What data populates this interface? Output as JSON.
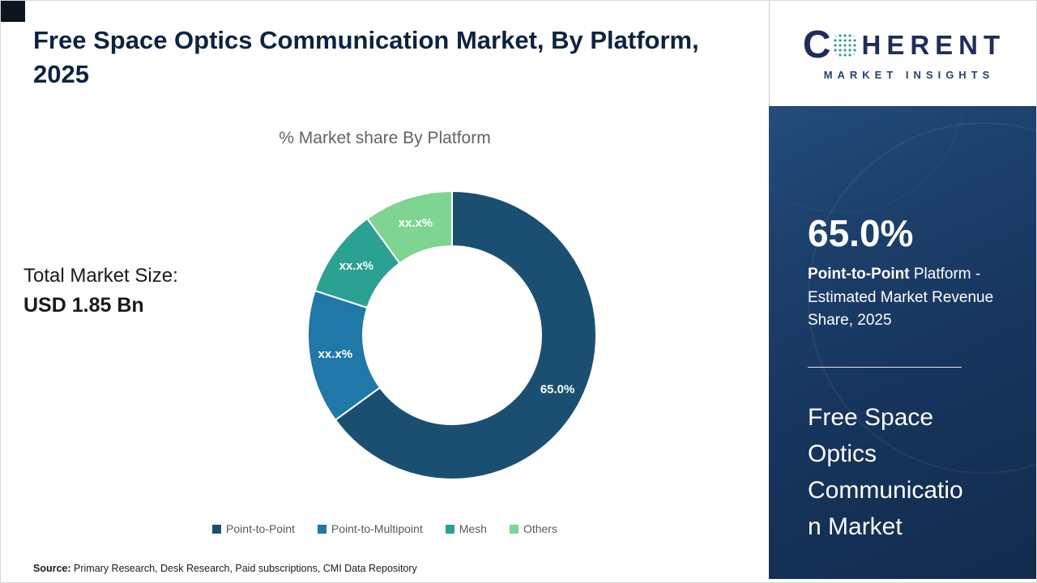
{
  "header": {
    "title": "Free Space Optics Communication Market, By Platform, 2025"
  },
  "total_market": {
    "label": "Total Market Size:",
    "value": "USD 1.85 Bn"
  },
  "chart_data": {
    "type": "pie",
    "variant": "donut",
    "title": "% Market share By Platform",
    "categories": [
      "Point-to-Point",
      "Point-to-Multipoint",
      "Mesh",
      "Others"
    ],
    "values": [
      65.0,
      15.0,
      10.0,
      10.0
    ],
    "labels": [
      "65.0%",
      "xx.x%",
      "xx.x%",
      "xx.x%"
    ],
    "colors": [
      "#1b4f72",
      "#1f78a8",
      "#2ba193",
      "#7ed491"
    ],
    "legend_position": "bottom",
    "start_angle_deg": -90,
    "direction": "clockwise"
  },
  "source": {
    "prefix": "Source:",
    "text": " Primary Research, Desk Research, Paid subscriptions, CMI Data Repository"
  },
  "side_panel": {
    "stat_value": "65.0%",
    "stat_bold": "Point-to-Point",
    "stat_rest": " Platform - Estimated Market Revenue Share, 2025",
    "market_name": "Free Space Optics Communication Market"
  },
  "logo": {
    "c": "C",
    "rest": "HERENT",
    "tagline": "MARKET INSIGHTS"
  }
}
